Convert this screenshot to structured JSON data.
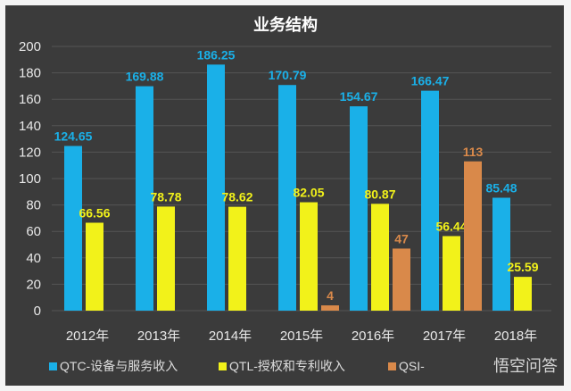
{
  "chart_data": {
    "type": "bar",
    "title": "业务结构",
    "categories": [
      "2012年",
      "2013年",
      "2014年",
      "2015年",
      "2016年",
      "2017年",
      "2018年"
    ],
    "ylim": [
      0,
      200
    ],
    "yticks": [
      0,
      20,
      40,
      60,
      80,
      100,
      120,
      140,
      160,
      180,
      200
    ],
    "grid": true,
    "legend_position": "bottom",
    "series": [
      {
        "name": "QTC-设备与服务收入",
        "color": "#1ab0e8",
        "values": [
          124.65,
          169.88,
          186.25,
          170.79,
          154.67,
          166.47,
          85.48
        ],
        "labels": [
          "124.65",
          "169.88",
          "186.25",
          "170.79",
          "154.67",
          "166.47",
          "85.48"
        ]
      },
      {
        "name": "QTL-授权和专利收入",
        "color": "#f2f21a",
        "values": [
          66.56,
          78.78,
          78.62,
          82.05,
          80.87,
          56.44,
          25.59
        ],
        "labels": [
          "66.56",
          "78.78",
          "78.62",
          "82.05",
          "80.87",
          "56.44",
          "25.59"
        ]
      },
      {
        "name": "QSI-",
        "color": "#d9894a",
        "values": [
          null,
          null,
          null,
          4,
          47,
          113,
          null
        ],
        "labels": [
          "",
          "",
          "",
          "4",
          "47",
          "113",
          ""
        ]
      }
    ]
  },
  "watermark": "悟空问答"
}
